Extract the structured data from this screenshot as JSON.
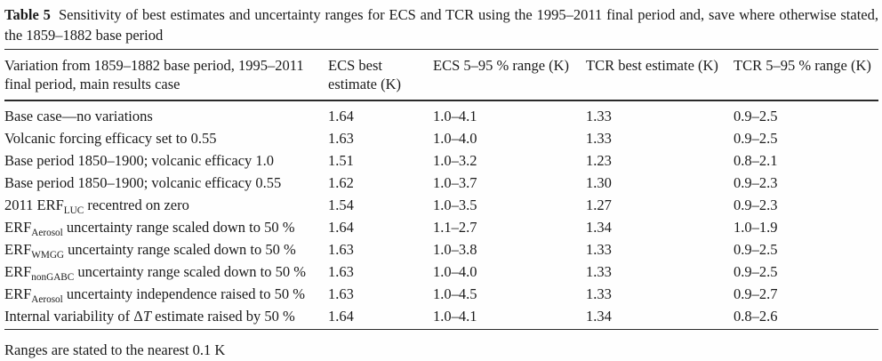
{
  "title": {
    "tag": "Table 5",
    "text": "Sensitivity of best estimates and uncertainty ranges for ECS and TCR using the 1995–2011 final period and, save where otherwise stated, the 1859–1882 base period"
  },
  "table": {
    "columns": [
      "Variation from 1859–1882 base period, 1995–2011 final period, main results case",
      "ECS best estimate (K)",
      "ECS 5–95 % range (K)",
      "TCR best estimate (K)",
      "TCR 5–95 % range (K)"
    ],
    "rows": [
      {
        "label": [
          {
            "text": "Base case—no variations"
          }
        ],
        "ecs_best": "1.64",
        "ecs_range": "1.0–4.1",
        "tcr_best": "1.33",
        "tcr_range": "0.9–2.5"
      },
      {
        "label": [
          {
            "text": "Volcanic forcing efficacy set to 0.55"
          }
        ],
        "ecs_best": "1.63",
        "ecs_range": "1.0–4.0",
        "tcr_best": "1.33",
        "tcr_range": "0.9–2.5"
      },
      {
        "label": [
          {
            "text": "Base period 1850–1900; volcanic efficacy 1.0"
          }
        ],
        "ecs_best": "1.51",
        "ecs_range": "1.0–3.2",
        "tcr_best": "1.23",
        "tcr_range": "0.8–2.1"
      },
      {
        "label": [
          {
            "text": "Base period 1850–1900; volcanic efficacy 0.55"
          }
        ],
        "ecs_best": "1.62",
        "ecs_range": "1.0–3.7",
        "tcr_best": "1.30",
        "tcr_range": "0.9–2.3"
      },
      {
        "label": [
          {
            "text": "2011 ERF"
          },
          {
            "sub": "LUC"
          },
          {
            "text": " recentred on zero"
          }
        ],
        "ecs_best": "1.54",
        "ecs_range": "1.0–3.5",
        "tcr_best": "1.27",
        "tcr_range": "0.9–2.3"
      },
      {
        "label": [
          {
            "text": "ERF"
          },
          {
            "sub": "Aerosol"
          },
          {
            "text": " uncertainty range scaled down to 50 %"
          }
        ],
        "ecs_best": "1.64",
        "ecs_range": "1.1–2.7",
        "tcr_best": "1.34",
        "tcr_range": "1.0–1.9"
      },
      {
        "label": [
          {
            "text": "ERF"
          },
          {
            "sub": "WMGG"
          },
          {
            "text": " uncertainty range scaled down to 50 %"
          }
        ],
        "ecs_best": "1.63",
        "ecs_range": "1.0–3.8",
        "tcr_best": "1.33",
        "tcr_range": "0.9–2.5"
      },
      {
        "label": [
          {
            "text": "ERF"
          },
          {
            "sub": "nonGABC"
          },
          {
            "text": " uncertainty range scaled down to 50 %"
          }
        ],
        "ecs_best": "1.63",
        "ecs_range": "1.0–4.0",
        "tcr_best": "1.33",
        "tcr_range": "0.9–2.5"
      },
      {
        "label": [
          {
            "text": "ERF"
          },
          {
            "sub": "Aerosol"
          },
          {
            "text": " uncertainty independence raised to 50 %"
          }
        ],
        "ecs_best": "1.63",
        "ecs_range": "1.0–4.5",
        "tcr_best": "1.33",
        "tcr_range": "0.9–2.7"
      },
      {
        "label": [
          {
            "text": "Internal variability of Δ"
          },
          {
            "italic": "T"
          },
          {
            "text": " estimate raised by 50 %"
          }
        ],
        "ecs_best": "1.64",
        "ecs_range": "1.0–4.1",
        "tcr_best": "1.34",
        "tcr_range": "0.8–2.6"
      }
    ]
  },
  "footnote": "Ranges are stated to the nearest 0.1 K"
}
